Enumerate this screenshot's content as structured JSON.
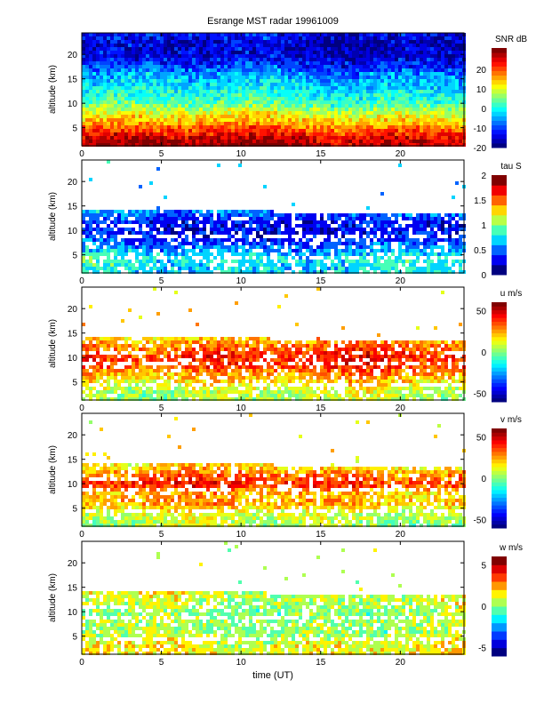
{
  "title": "Esrange MST radar 19961009",
  "xlabel": "time (UT)",
  "ylabel": "altitude (km)",
  "chart_data": [
    {
      "type": "heatmap",
      "colorbar_label": "SNR dB",
      "xlim": [
        0,
        24
      ],
      "ylim": [
        1.3,
        24.4
      ],
      "xticks": [
        0,
        5,
        10,
        15,
        20
      ],
      "yticks": [
        5,
        10,
        15,
        20
      ],
      "clim": [
        -20,
        31
      ],
      "cticks": [
        -20,
        -10,
        0,
        10,
        20
      ],
      "clevels": 22,
      "altitude_km": [
        2,
        4,
        6,
        8,
        10,
        12,
        14,
        16,
        18,
        20,
        22,
        24
      ],
      "mean_profile": [
        28,
        22,
        15,
        10,
        3,
        0,
        -3,
        -6,
        -12,
        -15,
        -16,
        -14
      ],
      "coverage_top_km": 24.4
    },
    {
      "type": "heatmap",
      "colorbar_label": "tau S",
      "xlim": [
        0,
        24
      ],
      "ylim": [
        1.3,
        24.4
      ],
      "xticks": [
        0,
        5,
        10,
        15,
        20
      ],
      "yticks": [
        5,
        10,
        15,
        20
      ],
      "clim": [
        0,
        2
      ],
      "cticks": [
        0,
        0.5,
        1,
        1.5,
        2
      ],
      "clevels": 10,
      "altitude_km": [
        2,
        4,
        6,
        8,
        10,
        12,
        14
      ],
      "mean_profile": [
        0.75,
        0.8,
        0.6,
        0.4,
        0.3,
        0.35,
        0.6
      ],
      "coverage_top_km": 14.5
    },
    {
      "type": "heatmap",
      "colorbar_label": "u m/s",
      "xlim": [
        0,
        24
      ],
      "ylim": [
        1.3,
        24.4
      ],
      "xticks": [
        0,
        5,
        10,
        15,
        20
      ],
      "yticks": [
        5,
        10,
        15,
        20
      ],
      "clim": [
        -60,
        60
      ],
      "cticks": [
        -50,
        0,
        50
      ],
      "clevels": 26,
      "altitude_km": [
        2,
        4,
        6,
        8,
        10,
        12,
        14
      ],
      "mean_profile": [
        5,
        12,
        22,
        35,
        40,
        32,
        20
      ],
      "coverage_top_km": 14.5
    },
    {
      "type": "heatmap",
      "colorbar_label": "v m/s",
      "xlim": [
        0,
        24
      ],
      "ylim": [
        1.3,
        24.4
      ],
      "xticks": [
        0,
        5,
        10,
        15,
        20
      ],
      "yticks": [
        5,
        10,
        15,
        20
      ],
      "clim": [
        -60,
        60
      ],
      "cticks": [
        -50,
        0,
        50
      ],
      "clevels": 26,
      "altitude_km": [
        2,
        4,
        6,
        8,
        10,
        12,
        14
      ],
      "mean_profile": [
        5,
        10,
        25,
        22,
        40,
        28,
        15
      ],
      "coverage_top_km": 14.5
    },
    {
      "type": "heatmap",
      "colorbar_label": "w m/s",
      "xlim": [
        0,
        24
      ],
      "ylim": [
        1.3,
        24.4
      ],
      "xticks": [
        0,
        5,
        10,
        15,
        20
      ],
      "yticks": [
        5,
        10,
        15,
        20
      ],
      "clim": [
        -6,
        6
      ],
      "cticks": [
        -5,
        0,
        5
      ],
      "clevels": 12,
      "altitude_km": [
        2,
        4,
        6,
        8,
        10,
        12,
        14
      ],
      "mean_profile": [
        1.5,
        1.2,
        0.3,
        0.5,
        0.2,
        0.8,
        1.0
      ],
      "coverage_top_km": 14.5
    }
  ]
}
